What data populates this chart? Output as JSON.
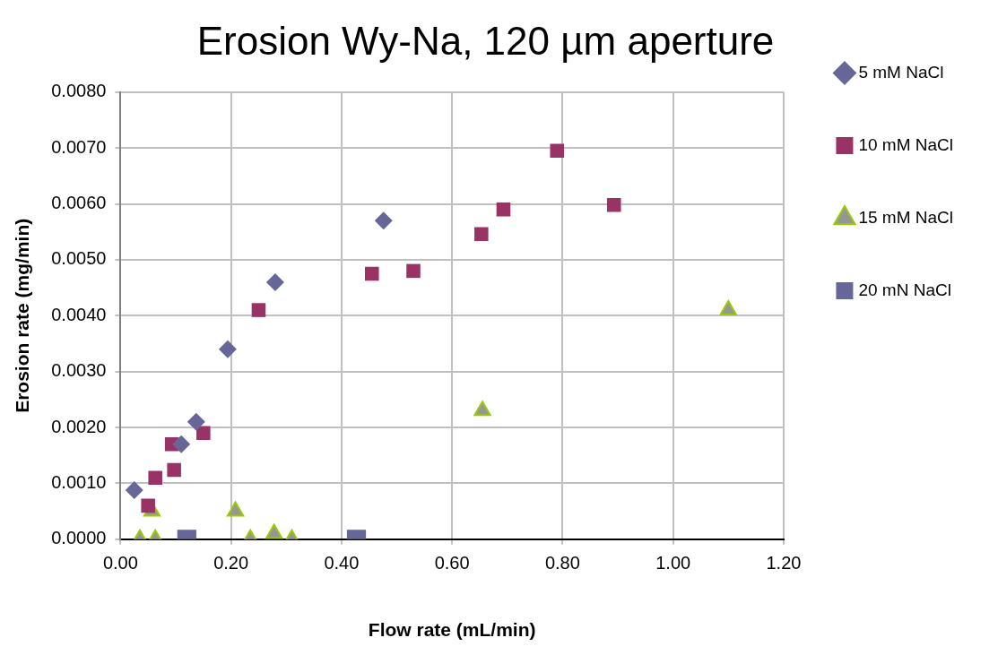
{
  "chart_data": {
    "type": "scatter",
    "title": "Erosion Wy-Na, 120 µm aperture",
    "xlabel": "Flow rate (mL/min)",
    "ylabel": "Erosion rate (mg/min)",
    "xlim": [
      0,
      1.2
    ],
    "xticks": [
      {
        "value": 0,
        "label": "0.00"
      },
      {
        "value": 0.2,
        "label": "0.20"
      },
      {
        "value": 0.4,
        "label": "0.40"
      },
      {
        "value": 0.6,
        "label": "0.60"
      },
      {
        "value": 0.8,
        "label": "0.80"
      },
      {
        "value": 1,
        "label": "1.00"
      },
      {
        "value": 1.2,
        "label": "1.20"
      }
    ],
    "ylim": [
      0,
      0.008
    ],
    "yticks": [
      {
        "value": 0,
        "label": "0.0000"
      },
      {
        "value": 0.001,
        "label": "0.0010"
      },
      {
        "value": 0.002,
        "label": "0.0020"
      },
      {
        "value": 0.003,
        "label": "0.0030"
      },
      {
        "value": 0.004,
        "label": "0.0040"
      },
      {
        "value": 0.005,
        "label": "0.0050"
      },
      {
        "value": 0.006,
        "label": "0.0060"
      },
      {
        "value": 0.007,
        "label": "0.0070"
      },
      {
        "value": 0.008,
        "label": "0.0080"
      }
    ],
    "grid": true,
    "legend": "right",
    "series": [
      {
        "name": "5 mM NaCl",
        "color": "#666699",
        "marker": "diamond",
        "x": [
          0.025,
          0.11,
          0.137,
          0.194,
          0.28,
          0.476
        ],
        "values": [
          0.00088,
          0.0017,
          0.0021,
          0.0034,
          0.0046,
          0.0057
        ]
      },
      {
        "name": "10 mM NaCl",
        "color": "#993366",
        "marker": "square",
        "x": [
          0.05,
          0.063,
          0.097,
          0.093,
          0.15,
          0.25,
          0.455,
          0.53,
          0.653,
          0.693,
          0.79,
          0.893
        ],
        "values": [
          0.0006,
          0.0011,
          0.00124,
          0.0017,
          0.0019,
          0.0041,
          0.00475,
          0.0048,
          0.00546,
          0.0059,
          0.00695,
          0.00598
        ]
      },
      {
        "name": "15 mM NaCl",
        "color": "#969696",
        "marker": "triangle",
        "x": [
          0.035,
          0.057,
          0.063,
          0.208,
          0.235,
          0.278,
          0.31,
          0.655,
          1.1
        ],
        "values": [
          0,
          0.0005,
          0,
          0.0005,
          0,
          0.0001,
          0,
          0.0023,
          0.0041
        ]
      },
      {
        "name": "20 mN NaCl",
        "color": "#666699",
        "marker": "square",
        "x": [
          0.12,
          0.427
        ],
        "values": [
          0,
          0
        ]
      }
    ]
  }
}
